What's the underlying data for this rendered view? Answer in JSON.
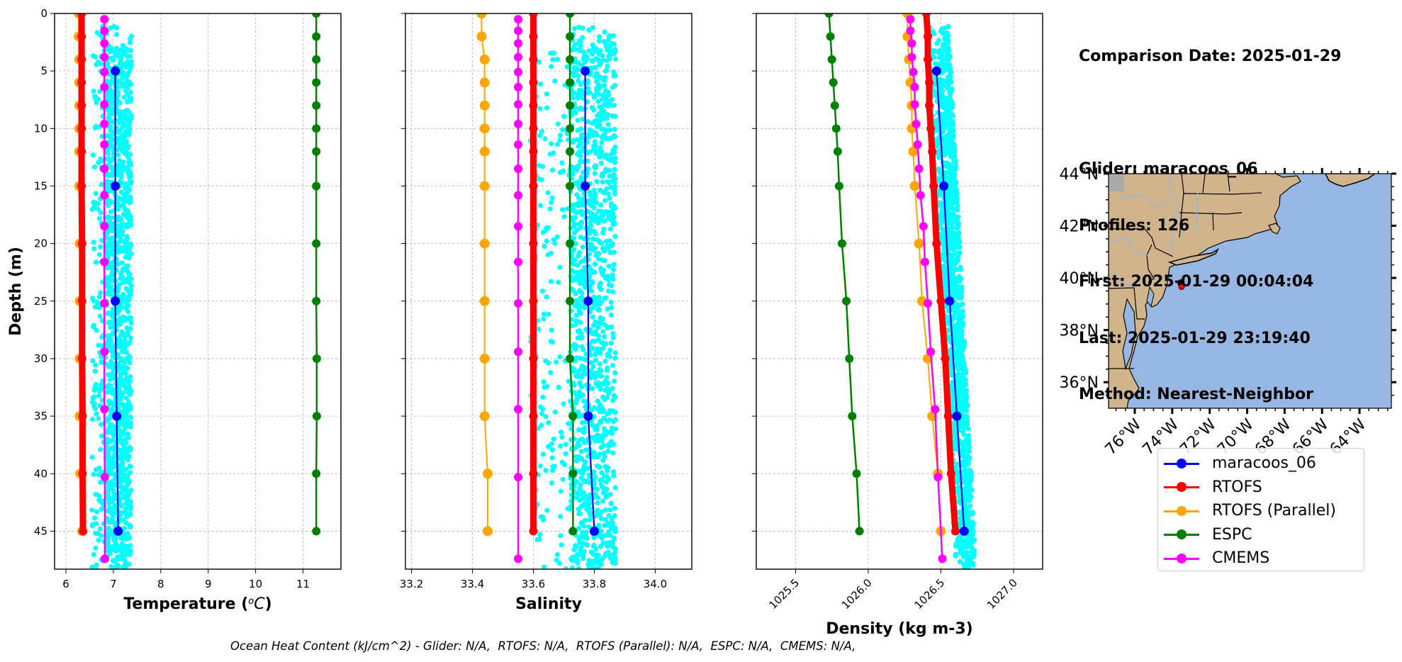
{
  "info": {
    "comparison_date": "Comparison Date: 2025-01-29",
    "glider": "Glider: maracoos_06",
    "profiles": "Profiles: 126",
    "first": "First: 2025-01-29 00:04:04",
    "last": "Last: 2025-01-29 23:19:40",
    "method": "Method: Nearest-Neighbor"
  },
  "footer": "Ocean Heat Content (kJ/cm^2) - Glider: N/A,  RTOFS: N/A,  RTOFS (Parallel): N/A,  ESPC: N/A,  CMEMS: N/A,",
  "legend": [
    {
      "label": "maracoos_06",
      "color": "#0000ff"
    },
    {
      "label": "RTOFS",
      "color": "#ff0000"
    },
    {
      "label": "RTOFS (Parallel)",
      "color": "#ffa500"
    },
    {
      "label": "ESPC",
      "color": "#008000"
    },
    {
      "label": "CMEMS",
      "color": "#ff00ff"
    }
  ],
  "colors": {
    "glider_scatter": "#00ffff",
    "land": "#d2b48c",
    "ocean": "#97b6e1",
    "grid": "#b0b0b0"
  },
  "chart_data": [
    {
      "type": "line",
      "title": "",
      "xlabel": "Temperature (°C)",
      "ylabel": "Depth (m)",
      "xlim": [
        5.76,
        11.8
      ],
      "ylim": [
        48.3,
        0
      ],
      "xticks": [
        6,
        7,
        8,
        9,
        10,
        11
      ],
      "yticks": [
        0,
        5,
        10,
        15,
        20,
        25,
        30,
        35,
        40,
        45
      ],
      "grid": true,
      "scatter": {
        "name": "maracoos_06 raw",
        "x_range": [
          6.55,
          7.4
        ],
        "core_range": [
          6.85,
          7.38
        ],
        "depth_range": [
          1,
          48.3
        ]
      },
      "series": [
        {
          "name": "RTOFS",
          "depth": [
            0,
            2,
            4,
            6,
            8,
            10,
            12,
            15,
            20,
            25,
            30,
            35,
            40,
            45
          ],
          "values": [
            6.33,
            6.33,
            6.33,
            6.33,
            6.33,
            6.33,
            6.33,
            6.33,
            6.34,
            6.34,
            6.34,
            6.35,
            6.35,
            6.36
          ]
        },
        {
          "name": "RTOFS (Parallel)",
          "depth": [
            0,
            2,
            4,
            6,
            8,
            10,
            12,
            15,
            20,
            25,
            30,
            35,
            40,
            45
          ],
          "values": [
            6.27,
            6.27,
            6.28,
            6.28,
            6.28,
            6.28,
            6.28,
            6.28,
            6.29,
            6.29,
            6.29,
            6.29,
            6.3,
            6.34
          ]
        },
        {
          "name": "ESPC",
          "depth": [
            0,
            2,
            4,
            6,
            8,
            10,
            12,
            15,
            20,
            25,
            30,
            35,
            40,
            45
          ],
          "values": [
            11.28,
            11.28,
            11.28,
            11.28,
            11.28,
            11.28,
            11.28,
            11.28,
            11.28,
            11.28,
            11.29,
            11.29,
            11.28,
            11.28
          ]
        },
        {
          "name": "CMEMS",
          "depth": [
            0.5,
            1.5,
            2.6,
            3.8,
            5.1,
            6.4,
            7.9,
            9.6,
            11.4,
            13.5,
            15.8,
            18.5,
            21.6,
            25.2,
            29.4,
            34.4,
            40.3,
            47.4
          ],
          "values": [
            6.81,
            6.81,
            6.81,
            6.81,
            6.81,
            6.81,
            6.81,
            6.81,
            6.81,
            6.81,
            6.81,
            6.81,
            6.81,
            6.81,
            6.81,
            6.81,
            6.82,
            6.82
          ]
        },
        {
          "name": "maracoos_06",
          "depth": [
            5,
            15,
            25,
            35,
            45
          ],
          "values": [
            7.04,
            7.04,
            7.04,
            7.07,
            7.1
          ]
        }
      ]
    },
    {
      "type": "line",
      "title": "",
      "xlabel": "Salinity",
      "ylabel": "",
      "xlim": [
        33.18,
        34.12
      ],
      "ylim": [
        48.3,
        0
      ],
      "xticks": [
        33.2,
        33.4,
        33.6,
        33.8,
        34.0
      ],
      "xtick_labels": [
        "33.2",
        "33.4",
        "33.6",
        "33.8",
        "34.0"
      ],
      "yticks": [
        0,
        5,
        10,
        15,
        20,
        25,
        30,
        35,
        40,
        45
      ],
      "grid": true,
      "scatter": {
        "name": "maracoos_06 raw",
        "x_range": [
          33.59,
          33.87
        ],
        "core_range": [
          33.72,
          33.87
        ],
        "depth_range": [
          1,
          48.3
        ]
      },
      "series": [
        {
          "name": "RTOFS",
          "depth": [
            0,
            2,
            4,
            6,
            8,
            10,
            12,
            15,
            20,
            25,
            30,
            35,
            40,
            45
          ],
          "values": [
            33.6,
            33.6,
            33.6,
            33.6,
            33.6,
            33.6,
            33.6,
            33.6,
            33.6,
            33.6,
            33.6,
            33.6,
            33.6,
            33.6
          ]
        },
        {
          "name": "RTOFS (Parallel)",
          "depth": [
            0,
            2,
            4,
            6,
            8,
            10,
            12,
            15,
            20,
            25,
            30,
            35,
            40,
            45
          ],
          "values": [
            33.43,
            33.43,
            33.44,
            33.44,
            33.44,
            33.44,
            33.44,
            33.44,
            33.44,
            33.44,
            33.44,
            33.44,
            33.45,
            33.45
          ]
        },
        {
          "name": "ESPC",
          "depth": [
            0,
            2,
            4,
            6,
            8,
            10,
            12,
            15,
            20,
            25,
            30,
            35,
            40,
            45
          ],
          "values": [
            33.72,
            33.72,
            33.72,
            33.72,
            33.72,
            33.72,
            33.72,
            33.72,
            33.72,
            33.72,
            33.72,
            33.73,
            33.73,
            33.73
          ]
        },
        {
          "name": "CMEMS",
          "depth": [
            0.5,
            1.5,
            2.6,
            3.8,
            5.1,
            6.4,
            7.9,
            9.6,
            11.4,
            13.5,
            15.8,
            18.5,
            21.6,
            25.2,
            29.4,
            34.4,
            40.3,
            47.4
          ],
          "values": [
            33.55,
            33.55,
            33.55,
            33.55,
            33.55,
            33.55,
            33.55,
            33.55,
            33.55,
            33.55,
            33.55,
            33.55,
            33.55,
            33.55,
            33.55,
            33.55,
            33.55,
            33.55
          ]
        },
        {
          "name": "maracoos_06",
          "depth": [
            5,
            15,
            25,
            35,
            45
          ],
          "values": [
            33.77,
            33.77,
            33.78,
            33.78,
            33.8
          ]
        }
      ]
    },
    {
      "type": "line",
      "title": "",
      "xlabel": "Density (kg m-3)",
      "ylabel": "",
      "xlim": [
        1025.23,
        1027.2
      ],
      "ylim": [
        48.3,
        0
      ],
      "xticks": [
        1025.5,
        1026.0,
        1026.5,
        1027.0
      ],
      "xtick_labels": [
        "1025.5",
        "1026.0",
        "1026.5",
        "1027.0"
      ],
      "yticks": [
        0,
        5,
        10,
        15,
        20,
        25,
        30,
        35,
        40,
        45
      ],
      "grid": true,
      "scatter": {
        "name": "maracoos_06 raw",
        "x_start": [
          1026.38,
          1026.55
        ],
        "x_end": [
          1026.6,
          1026.74
        ],
        "depth_range": [
          1,
          48.3
        ]
      },
      "series": [
        {
          "name": "RTOFS",
          "depth": [
            0,
            2,
            4,
            6,
            8,
            10,
            12,
            15,
            20,
            25,
            30,
            35,
            40,
            45
          ],
          "values": [
            1026.4,
            1026.41,
            1026.41,
            1026.42,
            1026.42,
            1026.43,
            1026.44,
            1026.45,
            1026.47,
            1026.5,
            1026.53,
            1026.55,
            1026.57,
            1026.6
          ]
        },
        {
          "name": "RTOFS (Parallel)",
          "depth": [
            0,
            2,
            4,
            6,
            8,
            10,
            12,
            15,
            20,
            25,
            30,
            35,
            40,
            45
          ],
          "values": [
            1026.27,
            1026.27,
            1026.28,
            1026.29,
            1026.3,
            1026.3,
            1026.31,
            1026.32,
            1026.35,
            1026.37,
            1026.41,
            1026.44,
            1026.48,
            1026.5
          ]
        },
        {
          "name": "ESPC",
          "depth": [
            0,
            2,
            4,
            6,
            8,
            10,
            12,
            15,
            20,
            25,
            30,
            35,
            40,
            45
          ],
          "values": [
            1025.73,
            1025.74,
            1025.75,
            1025.76,
            1025.77,
            1025.78,
            1025.79,
            1025.8,
            1025.82,
            1025.85,
            1025.87,
            1025.89,
            1025.92,
            1025.94
          ]
        },
        {
          "name": "CMEMS",
          "depth": [
            0.5,
            1.5,
            2.6,
            3.8,
            5.1,
            6.4,
            7.9,
            9.6,
            11.4,
            13.5,
            15.8,
            18.5,
            21.6,
            25.2,
            29.4,
            34.4,
            40.3,
            47.4
          ],
          "values": [
            1026.29,
            1026.29,
            1026.3,
            1026.3,
            1026.31,
            1026.32,
            1026.32,
            1026.33,
            1026.34,
            1026.35,
            1026.36,
            1026.38,
            1026.39,
            1026.41,
            1026.43,
            1026.46,
            1026.48,
            1026.51
          ]
        },
        {
          "name": "maracoos_06",
          "depth": [
            5,
            15,
            25,
            35,
            45
          ],
          "values": [
            1026.47,
            1026.52,
            1026.56,
            1026.61,
            1026.66
          ]
        }
      ]
    }
  ],
  "map": {
    "lon_range": [
      -77.4,
      -62.3
    ],
    "lat_range": [
      35,
      44
    ],
    "lat_ticks": [
      44,
      42,
      40,
      38,
      36
    ],
    "lat_labels": [
      "44°N",
      "42°N",
      "40°N",
      "38°N",
      "36°N"
    ],
    "lon_ticks": [
      -76,
      -74,
      -72,
      -70,
      -68,
      -66,
      -64
    ],
    "lon_labels": [
      "76°W",
      "74°W",
      "72°W",
      "70°W",
      "68°W",
      "66°W",
      "64°W"
    ],
    "glider_track": {
      "lon": -73.54,
      "lat": 39.81
    },
    "glider_last": {
      "lon": -73.5,
      "lat": 39.66
    }
  }
}
